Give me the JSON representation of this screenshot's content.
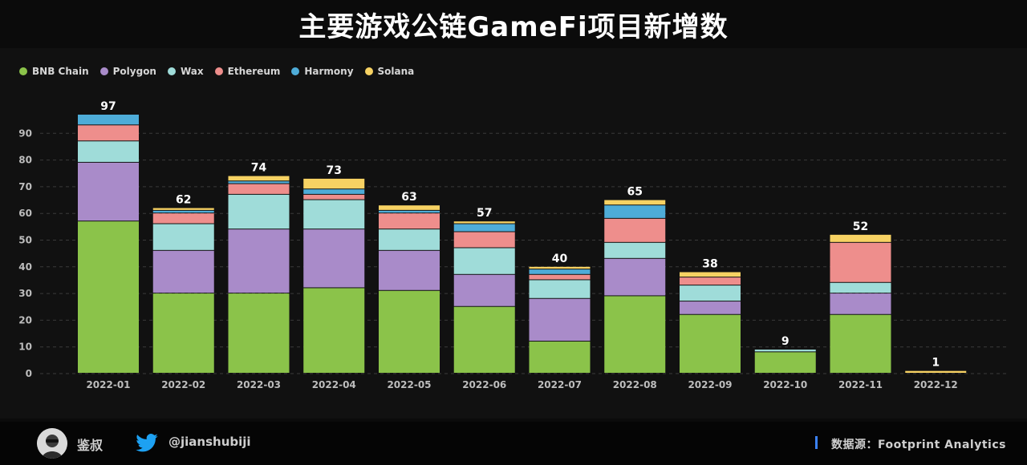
{
  "title": "主要游戏公链GameFi项目新增数",
  "footer": {
    "author": "鉴叔",
    "handle": "@jianshubiji",
    "source": "数据源：Footprint  Analytics"
  },
  "icons": {
    "avatar": "avatar-icon",
    "twitter": "twitter-bird-icon"
  },
  "chart_data": {
    "type": "bar",
    "stacked": true,
    "categories": [
      "2022-01",
      "2022-02",
      "2022-03",
      "2022-04",
      "2022-05",
      "2022-06",
      "2022-07",
      "2022-08",
      "2022-09",
      "2022-10",
      "2022-11",
      "2022-12"
    ],
    "series": [
      {
        "name": "BNB Chain",
        "color": "#8bc34a",
        "values": [
          57,
          30,
          30,
          32,
          31,
          25,
          12,
          29,
          22,
          8,
          22,
          0
        ]
      },
      {
        "name": "Polygon",
        "color": "#a98bc9",
        "values": [
          22,
          16,
          24,
          22,
          15,
          12,
          16,
          14,
          5,
          0,
          8,
          0
        ]
      },
      {
        "name": "Wax",
        "color": "#9fdcd9",
        "values": [
          8,
          10,
          13,
          11,
          8,
          10,
          7,
          6,
          6,
          1,
          4,
          0
        ]
      },
      {
        "name": "Ethereum",
        "color": "#ee8e8c",
        "values": [
          6,
          4,
          4,
          2,
          6,
          6,
          2,
          9,
          3,
          0,
          15,
          0
        ]
      },
      {
        "name": "Harmony",
        "color": "#4eacd8",
        "values": [
          4,
          1,
          1,
          2,
          1,
          3,
          2,
          5,
          0,
          0,
          0,
          0
        ]
      },
      {
        "name": "Solana",
        "color": "#f7d263",
        "values": [
          0,
          1,
          2,
          4,
          2,
          1,
          1,
          2,
          2,
          0,
          3,
          1
        ]
      }
    ],
    "totals": [
      97,
      62,
      74,
      73,
      63,
      57,
      40,
      65,
      38,
      9,
      52,
      1
    ],
    "ylim": [
      0,
      100
    ],
    "yticks": [
      0,
      10,
      20,
      30,
      40,
      50,
      60,
      70,
      80,
      90
    ],
    "grid": true,
    "legend_position": "top-left",
    "xlabel": "",
    "ylabel": ""
  }
}
